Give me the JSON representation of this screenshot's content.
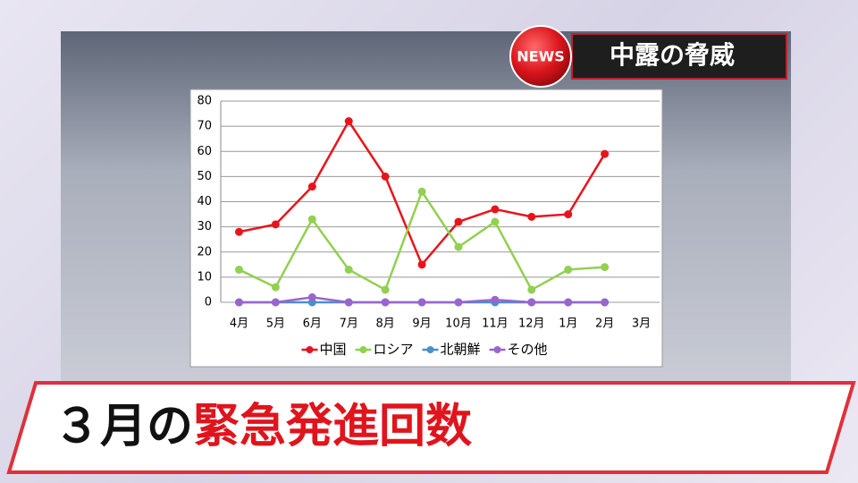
{
  "news_badge": "NEWS",
  "header_title": "中露の脅威",
  "caption": {
    "lead": "３月の",
    "highlight": "緊急発進回数"
  },
  "chart_data": {
    "type": "line",
    "categories": [
      "4月",
      "5月",
      "6月",
      "7月",
      "8月",
      "9月",
      "10月",
      "11月",
      "12月",
      "1月",
      "2月",
      "3月"
    ],
    "series": [
      {
        "name": "中国",
        "color": "#e8141c",
        "values": [
          28,
          31,
          46,
          72,
          50,
          15,
          32,
          37,
          34,
          35,
          59,
          null
        ]
      },
      {
        "name": "ロシア",
        "color": "#92d050",
        "values": [
          13,
          6,
          33,
          13,
          5,
          44,
          22,
          32,
          5,
          13,
          14,
          null
        ]
      },
      {
        "name": "北朝鮮",
        "color": "#4a90c8",
        "values": [
          0,
          0,
          0,
          0,
          0,
          0,
          0,
          0,
          0,
          0,
          0,
          null
        ]
      },
      {
        "name": "その他",
        "color": "#9966cc",
        "values": [
          0,
          0,
          2,
          0,
          0,
          0,
          0,
          1,
          0,
          0,
          0,
          null
        ]
      }
    ],
    "ylim": [
      0,
      80
    ],
    "yticks": [
      0,
      10,
      20,
      30,
      40,
      50,
      60,
      70,
      80
    ],
    "grid": true,
    "legend": "bottom"
  }
}
